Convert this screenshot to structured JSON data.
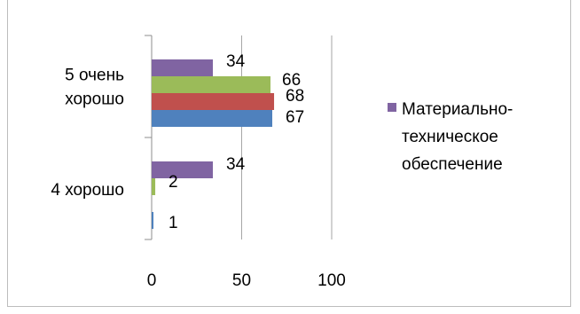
{
  "chart_data": {
    "type": "bar",
    "orientation": "horizontal",
    "categories": [
      "5 очень хорошо",
      "4 хорошо"
    ],
    "category_lines": [
      [
        "5 очень",
        "хорошо"
      ],
      [
        "4 хорошо"
      ]
    ],
    "series": [
      {
        "color": "#4F81BD",
        "values": [
          67,
          1
        ]
      },
      {
        "color": "#C0504D",
        "values": [
          68,
          0
        ]
      },
      {
        "color": "#9BBB59",
        "values": [
          66,
          2
        ]
      },
      {
        "name": "Материально-техническое обеспечение",
        "color": "#8064A2",
        "values": [
          34,
          34
        ]
      }
    ],
    "data_labels": [
      [
        "67",
        "68",
        "66",
        "34"
      ],
      [
        "1",
        "",
        "2",
        "34"
      ]
    ],
    "xlim": [
      0,
      100
    ],
    "x_ticks": [
      "0",
      "50",
      "100"
    ],
    "grid": "vertical",
    "legend": {
      "placement": "right",
      "entry_lines": [
        "Материально-",
        "техническое",
        "обеспечение"
      ],
      "color": "#8064A2"
    }
  }
}
